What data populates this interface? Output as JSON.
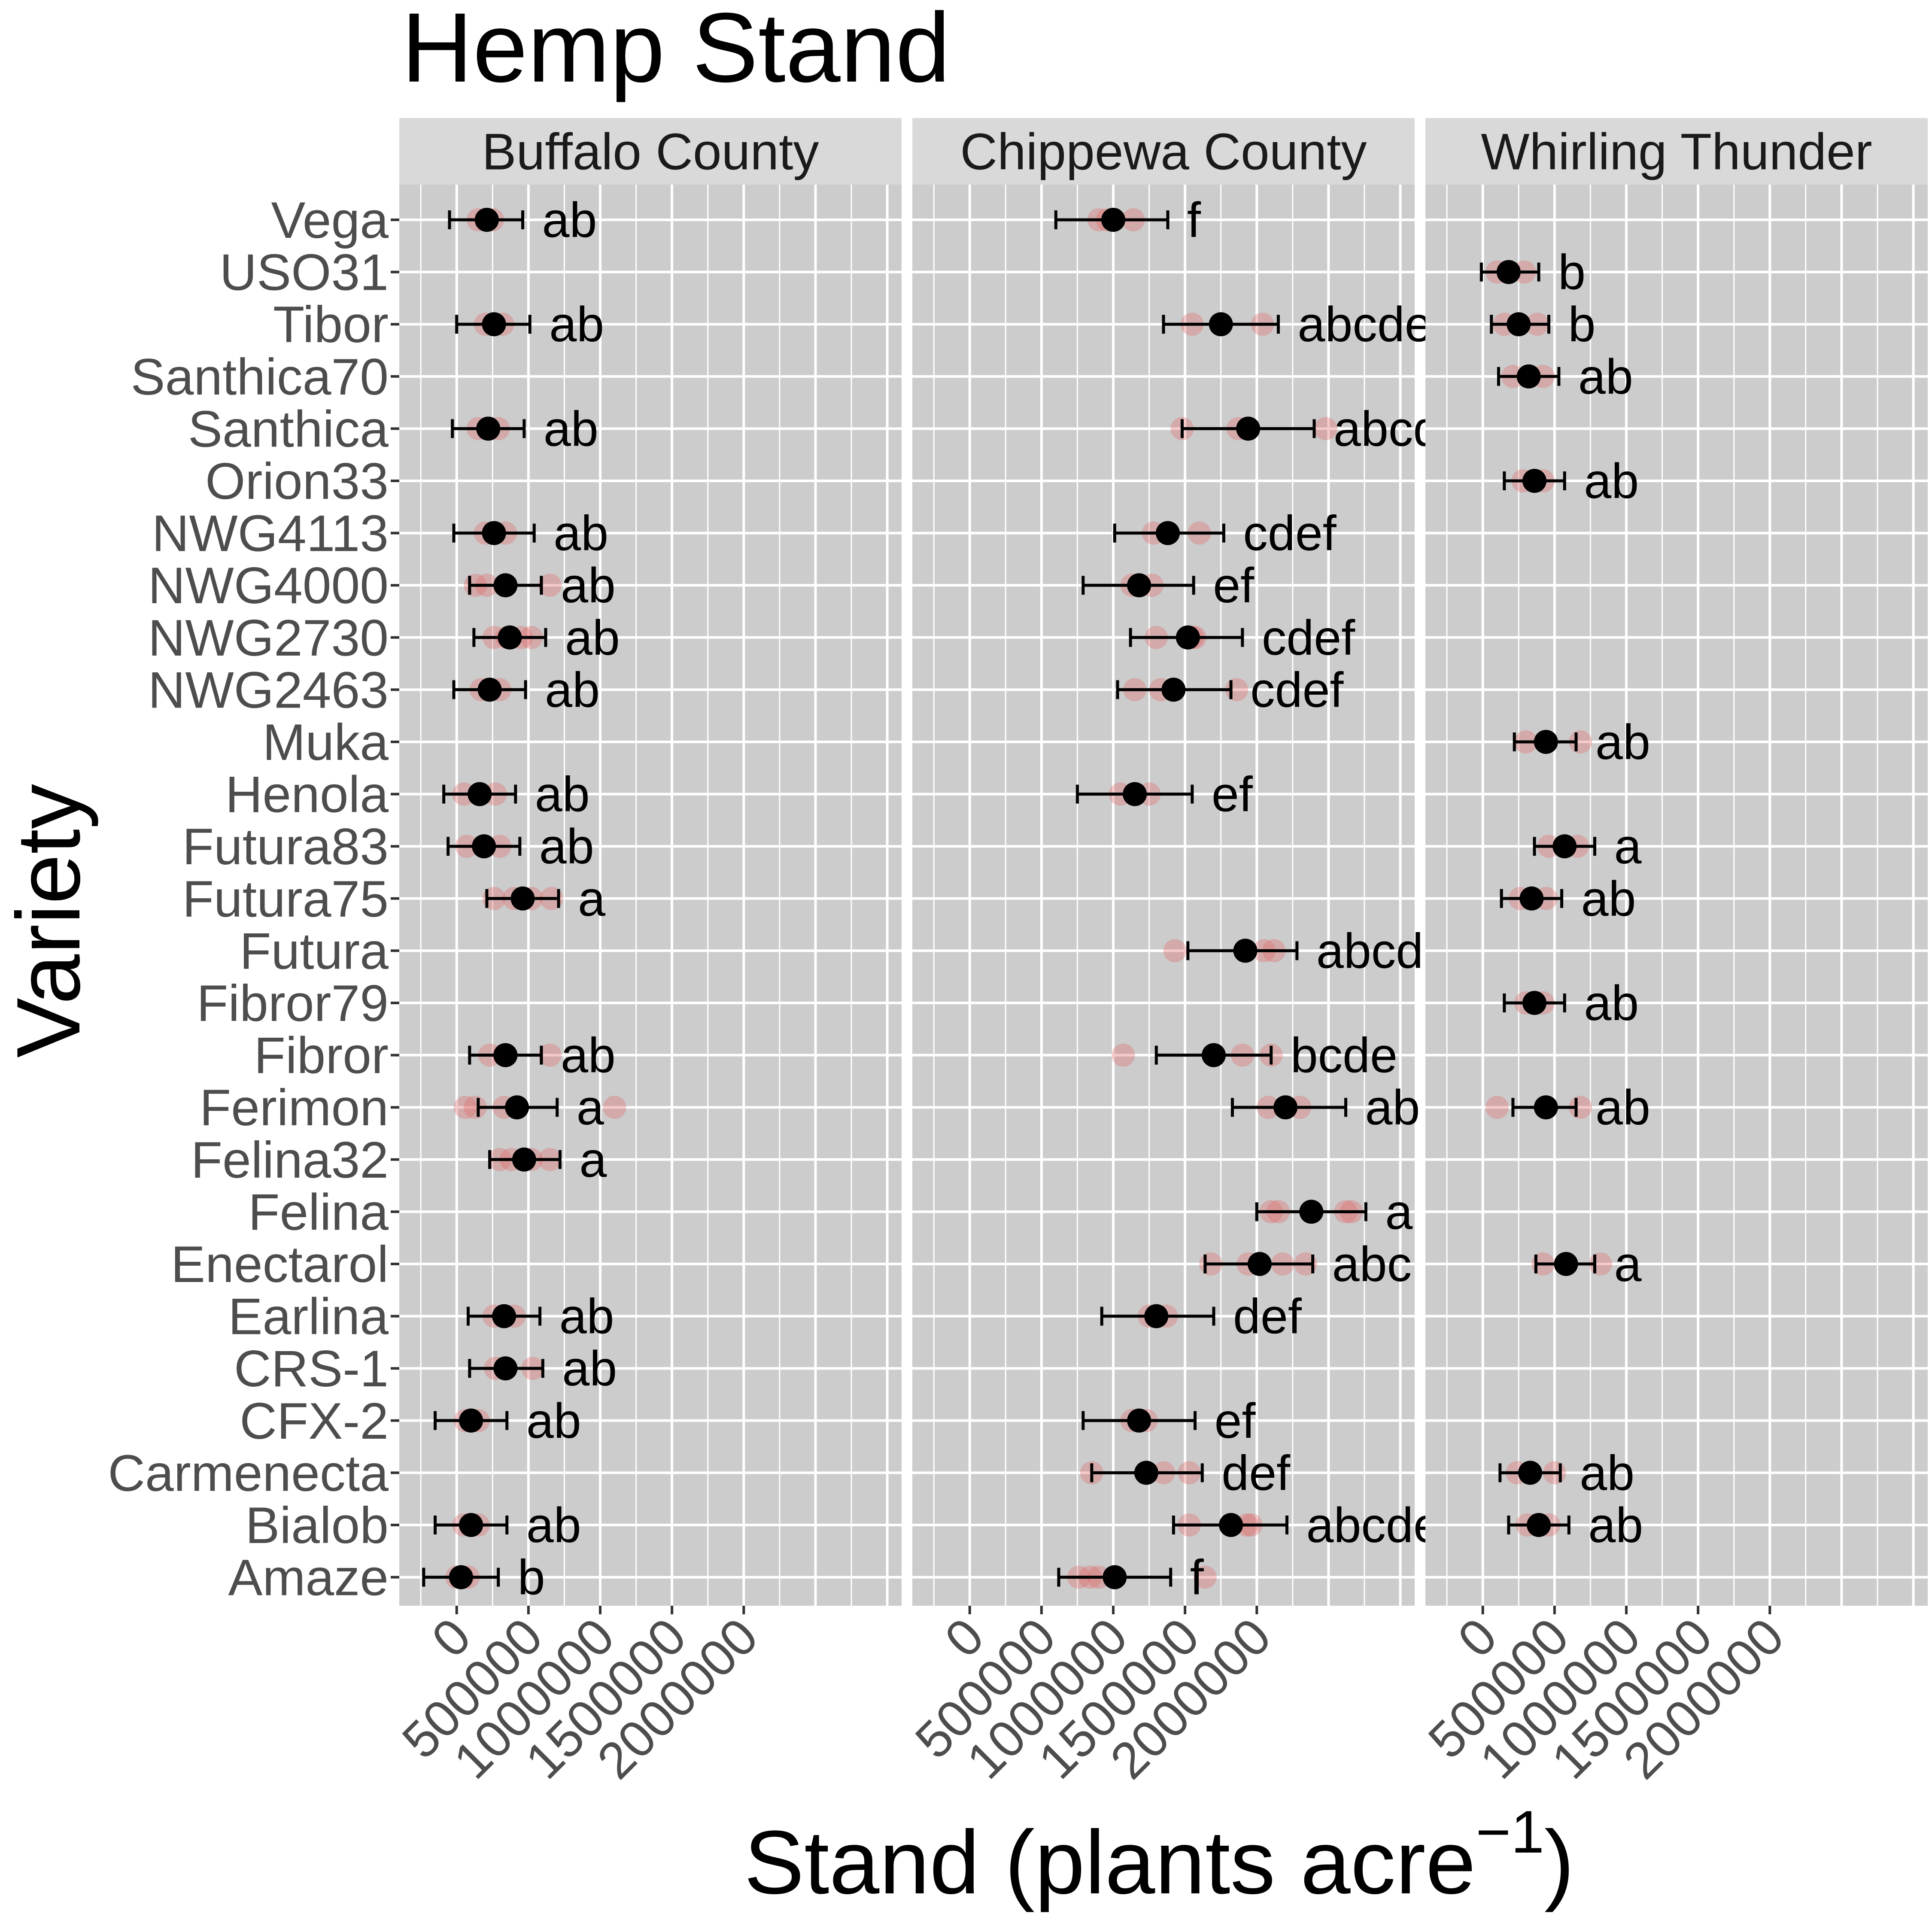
{
  "chart_data": {
    "type": "scatter",
    "title": "Hemp Stand",
    "xlabel": "Stand (plants acre",
    "xlabel_superscript": "−1",
    "xlabel_close": ")",
    "ylabel": "Variety",
    "xlim": [
      -400000,
      3100000
    ],
    "x_ticks": [
      0,
      500000,
      1000000,
      1500000,
      2000000
    ],
    "x_tick_labels": [
      "0",
      "500000",
      "1000000",
      "1500000",
      "2000000"
    ],
    "varieties": [
      "Vega",
      "USO31",
      "Tibor",
      "Santhica70",
      "Santhica",
      "Orion33",
      "NWG4113",
      "NWG4000",
      "NWG2730",
      "NWG2463",
      "Muka",
      "Henola",
      "Futura83",
      "Futura75",
      "Futura",
      "Fibror79",
      "Fibror",
      "Ferimon",
      "Felina32",
      "Felina",
      "Enectarol",
      "Earlina",
      "CRS-1",
      "CFX-2",
      "Carmenecta",
      "Bialob",
      "Amaze"
    ],
    "colors": {
      "panel_bg": "#cccccc",
      "strip_bg": "#d9d9d9",
      "grid": "#ffffff",
      "replicate": "#e06666",
      "mean": "#000000",
      "axis_text": "#4d4d4d"
    },
    "panels": [
      {
        "name": "Buffalo County",
        "points": [
          {
            "variety": "Vega",
            "mean": 210000,
            "lo": -50000,
            "hi": 460000,
            "letter": "ab",
            "reps": [
              150000,
              200000,
              250000
            ]
          },
          {
            "variety": "Tibor",
            "mean": 260000,
            "lo": 0,
            "hi": 510000,
            "letter": "ab",
            "reps": [
              200000,
              260000,
              320000
            ]
          },
          {
            "variety": "Santhica",
            "mean": 220000,
            "lo": -30000,
            "hi": 470000,
            "letter": "ab",
            "reps": [
              150000,
              220000,
              290000
            ]
          },
          {
            "variety": "NWG4113",
            "mean": 260000,
            "lo": -20000,
            "hi": 540000,
            "letter": "ab",
            "reps": [
              200000,
              260000,
              340000
            ]
          },
          {
            "variety": "NWG4000",
            "mean": 340000,
            "lo": 90000,
            "hi": 590000,
            "letter": "ab",
            "reps": [
              130000,
              210000,
              650000
            ]
          },
          {
            "variety": "NWG2730",
            "mean": 370000,
            "lo": 120000,
            "hi": 620000,
            "letter": "ab",
            "reps": [
              260000,
              350000,
              450000,
              520000
            ]
          },
          {
            "variety": "NWG2463",
            "mean": 230000,
            "lo": -20000,
            "hi": 480000,
            "letter": "ab",
            "reps": [
              170000,
              230000,
              300000
            ]
          },
          {
            "variety": "Henola",
            "mean": 160000,
            "lo": -90000,
            "hi": 410000,
            "letter": "ab",
            "reps": [
              50000,
              160000,
              270000
            ]
          },
          {
            "variety": "Futura83",
            "mean": 190000,
            "lo": -60000,
            "hi": 440000,
            "letter": "ab",
            "reps": [
              70000,
              190000,
              300000
            ]
          },
          {
            "variety": "Futura75",
            "mean": 460000,
            "lo": 210000,
            "hi": 710000,
            "letter": "a",
            "reps": [
              260000,
              400000,
              520000,
              660000
            ]
          },
          {
            "variety": "Fibror",
            "mean": 340000,
            "lo": 90000,
            "hi": 590000,
            "letter": "ab",
            "reps": [
              230000,
              330000,
              650000
            ]
          },
          {
            "variety": "Ferimon",
            "mean": 420000,
            "lo": 150000,
            "hi": 700000,
            "letter": "a",
            "reps": [
              60000,
              130000,
              330000,
              1100000
            ]
          },
          {
            "variety": "Felina32",
            "mean": 470000,
            "lo": 230000,
            "hi": 720000,
            "letter": "a",
            "reps": [
              300000,
              380000,
              520000,
              650000
            ]
          },
          {
            "variety": "Earlina",
            "mean": 330000,
            "lo": 80000,
            "hi": 580000,
            "letter": "ab",
            "reps": [
              260000,
              330000,
              400000
            ]
          },
          {
            "variety": "CRS-1",
            "mean": 340000,
            "lo": 90000,
            "hi": 600000,
            "letter": "ab",
            "reps": [
              270000,
              340000,
              530000
            ]
          },
          {
            "variety": "CFX-2",
            "mean": 100000,
            "lo": -150000,
            "hi": 350000,
            "letter": "ab",
            "reps": [
              60000,
              100000,
              150000
            ]
          },
          {
            "variety": "Bialob",
            "mean": 100000,
            "lo": -150000,
            "hi": 350000,
            "letter": "ab",
            "reps": [
              50000,
              100000,
              150000
            ]
          },
          {
            "variety": "Amaze",
            "mean": 30000,
            "lo": -230000,
            "hi": 290000,
            "letter": "b",
            "reps": [
              0,
              40000,
              80000
            ]
          }
        ]
      },
      {
        "name": "Chippewa County",
        "points": [
          {
            "variety": "Vega",
            "mean": 1000000,
            "lo": 600000,
            "hi": 1380000,
            "letter": "f",
            "reps": [
              900000,
              960000,
              1140000
            ]
          },
          {
            "variety": "Tibor",
            "mean": 1750000,
            "lo": 1350000,
            "hi": 2150000,
            "letter": "abcde",
            "reps": [
              1550000,
              1750000,
              2040000
            ]
          },
          {
            "variety": "Santhica",
            "mean": 1940000,
            "lo": 1480000,
            "hi": 2400000,
            "letter": "abcd",
            "reps": [
              1480000,
              1870000,
              2480000
            ]
          },
          {
            "variety": "NWG4113",
            "mean": 1380000,
            "lo": 1010000,
            "hi": 1770000,
            "letter": "cdef",
            "reps": [
              1280000,
              1380000,
              1600000
            ]
          },
          {
            "variety": "NWG4000",
            "mean": 1180000,
            "lo": 790000,
            "hi": 1560000,
            "letter": "ef",
            "reps": [
              1130000,
              1180000,
              1270000
            ]
          },
          {
            "variety": "NWG2730",
            "mean": 1520000,
            "lo": 1120000,
            "hi": 1900000,
            "letter": "cdef",
            "reps": [
              1300000,
              1520000,
              1550000,
              1570000
            ]
          },
          {
            "variety": "NWG2463",
            "mean": 1420000,
            "lo": 1030000,
            "hi": 1820000,
            "letter": "cdef",
            "reps": [
              1150000,
              1330000,
              1420000,
              1860000
            ]
          },
          {
            "variety": "Henola",
            "mean": 1150000,
            "lo": 750000,
            "hi": 1550000,
            "letter": "ef",
            "reps": [
              1050000,
              1150000,
              1250000
            ]
          },
          {
            "variety": "Futura",
            "mean": 1920000,
            "lo": 1520000,
            "hi": 2280000,
            "letter": "abcd",
            "reps": [
              1430000,
              2050000,
              2120000
            ]
          },
          {
            "variety": "Fibror",
            "mean": 1700000,
            "lo": 1300000,
            "hi": 2100000,
            "letter": "bcde",
            "reps": [
              1070000,
              1700000,
              1900000,
              2100000
            ]
          },
          {
            "variety": "Ferimon",
            "mean": 2200000,
            "lo": 1830000,
            "hi": 2620000,
            "letter": "ab",
            "reps": [
              2080000,
              2200000,
              2300000
            ]
          },
          {
            "variety": "Felina",
            "mean": 2380000,
            "lo": 2000000,
            "hi": 2760000,
            "letter": "a",
            "reps": [
              2100000,
              2150000,
              2620000,
              2660000
            ]
          },
          {
            "variety": "Enectarol",
            "mean": 2020000,
            "lo": 1640000,
            "hi": 2390000,
            "letter": "abc",
            "reps": [
              1680000,
              1940000,
              2180000,
              2340000
            ]
          },
          {
            "variety": "Earlina",
            "mean": 1300000,
            "lo": 920000,
            "hi": 1700000,
            "letter": "def",
            "reps": [
              1250000,
              1300000,
              1370000
            ]
          },
          {
            "variety": "CFX-2",
            "mean": 1180000,
            "lo": 790000,
            "hi": 1570000,
            "letter": "ef",
            "reps": [
              1130000,
              1180000,
              1230000
            ]
          },
          {
            "variety": "Carmenecta",
            "mean": 1230000,
            "lo": 850000,
            "hi": 1620000,
            "letter": "def",
            "reps": [
              850000,
              1230000,
              1350000,
              1530000
            ]
          },
          {
            "variety": "Bialob",
            "mean": 1820000,
            "lo": 1420000,
            "hi": 2210000,
            "letter": "abcde",
            "reps": [
              1530000,
              1820000,
              1930000,
              1960000
            ]
          },
          {
            "variety": "Amaze",
            "mean": 1010000,
            "lo": 620000,
            "hi": 1400000,
            "letter": "f",
            "reps": [
              760000,
              840000,
              900000,
              1640000
            ]
          }
        ]
      },
      {
        "name": "Whirling Thunder",
        "points": [
          {
            "variety": "USO31",
            "mean": 180000,
            "lo": -10000,
            "hi": 390000,
            "letter": "b",
            "reps": [
              100000,
              180000,
              290000
            ]
          },
          {
            "variety": "Tibor",
            "mean": 250000,
            "lo": 60000,
            "hi": 460000,
            "letter": "b",
            "reps": [
              150000,
              250000,
              380000
            ]
          },
          {
            "variety": "Santhica70",
            "mean": 320000,
            "lo": 110000,
            "hi": 530000,
            "letter": "ab",
            "reps": [
              210000,
              320000,
              420000
            ]
          },
          {
            "variety": "Orion33",
            "mean": 360000,
            "lo": 150000,
            "hi": 570000,
            "letter": "ab",
            "reps": [
              280000,
              360000,
              420000
            ]
          },
          {
            "variety": "Muka",
            "mean": 440000,
            "lo": 220000,
            "hi": 650000,
            "letter": "ab",
            "reps": [
              300000,
              440000,
              680000
            ]
          },
          {
            "variety": "Futura83",
            "mean": 570000,
            "lo": 360000,
            "hi": 780000,
            "letter": "a",
            "reps": [
              460000,
              570000,
              660000
            ]
          },
          {
            "variety": "Futura75",
            "mean": 340000,
            "lo": 130000,
            "hi": 550000,
            "letter": "ab",
            "reps": [
              260000,
              340000,
              440000
            ]
          },
          {
            "variety": "Fibror79",
            "mean": 360000,
            "lo": 150000,
            "hi": 570000,
            "letter": "ab",
            "reps": [
              300000,
              360000,
              420000
            ]
          },
          {
            "variety": "Ferimon",
            "mean": 440000,
            "lo": 210000,
            "hi": 650000,
            "letter": "ab",
            "reps": [
              100000,
              440000,
              680000
            ]
          },
          {
            "variety": "Enectarol",
            "mean": 580000,
            "lo": 370000,
            "hi": 780000,
            "letter": "a",
            "reps": [
              420000,
              580000,
              820000
            ]
          },
          {
            "variety": "Carmenecta",
            "mean": 330000,
            "lo": 120000,
            "hi": 540000,
            "letter": "ab",
            "reps": [
              240000,
              330000,
              500000
            ]
          },
          {
            "variety": "Bialob",
            "mean": 390000,
            "lo": 180000,
            "hi": 600000,
            "letter": "ab",
            "reps": [
              310000,
              390000,
              460000
            ]
          }
        ]
      }
    ]
  }
}
